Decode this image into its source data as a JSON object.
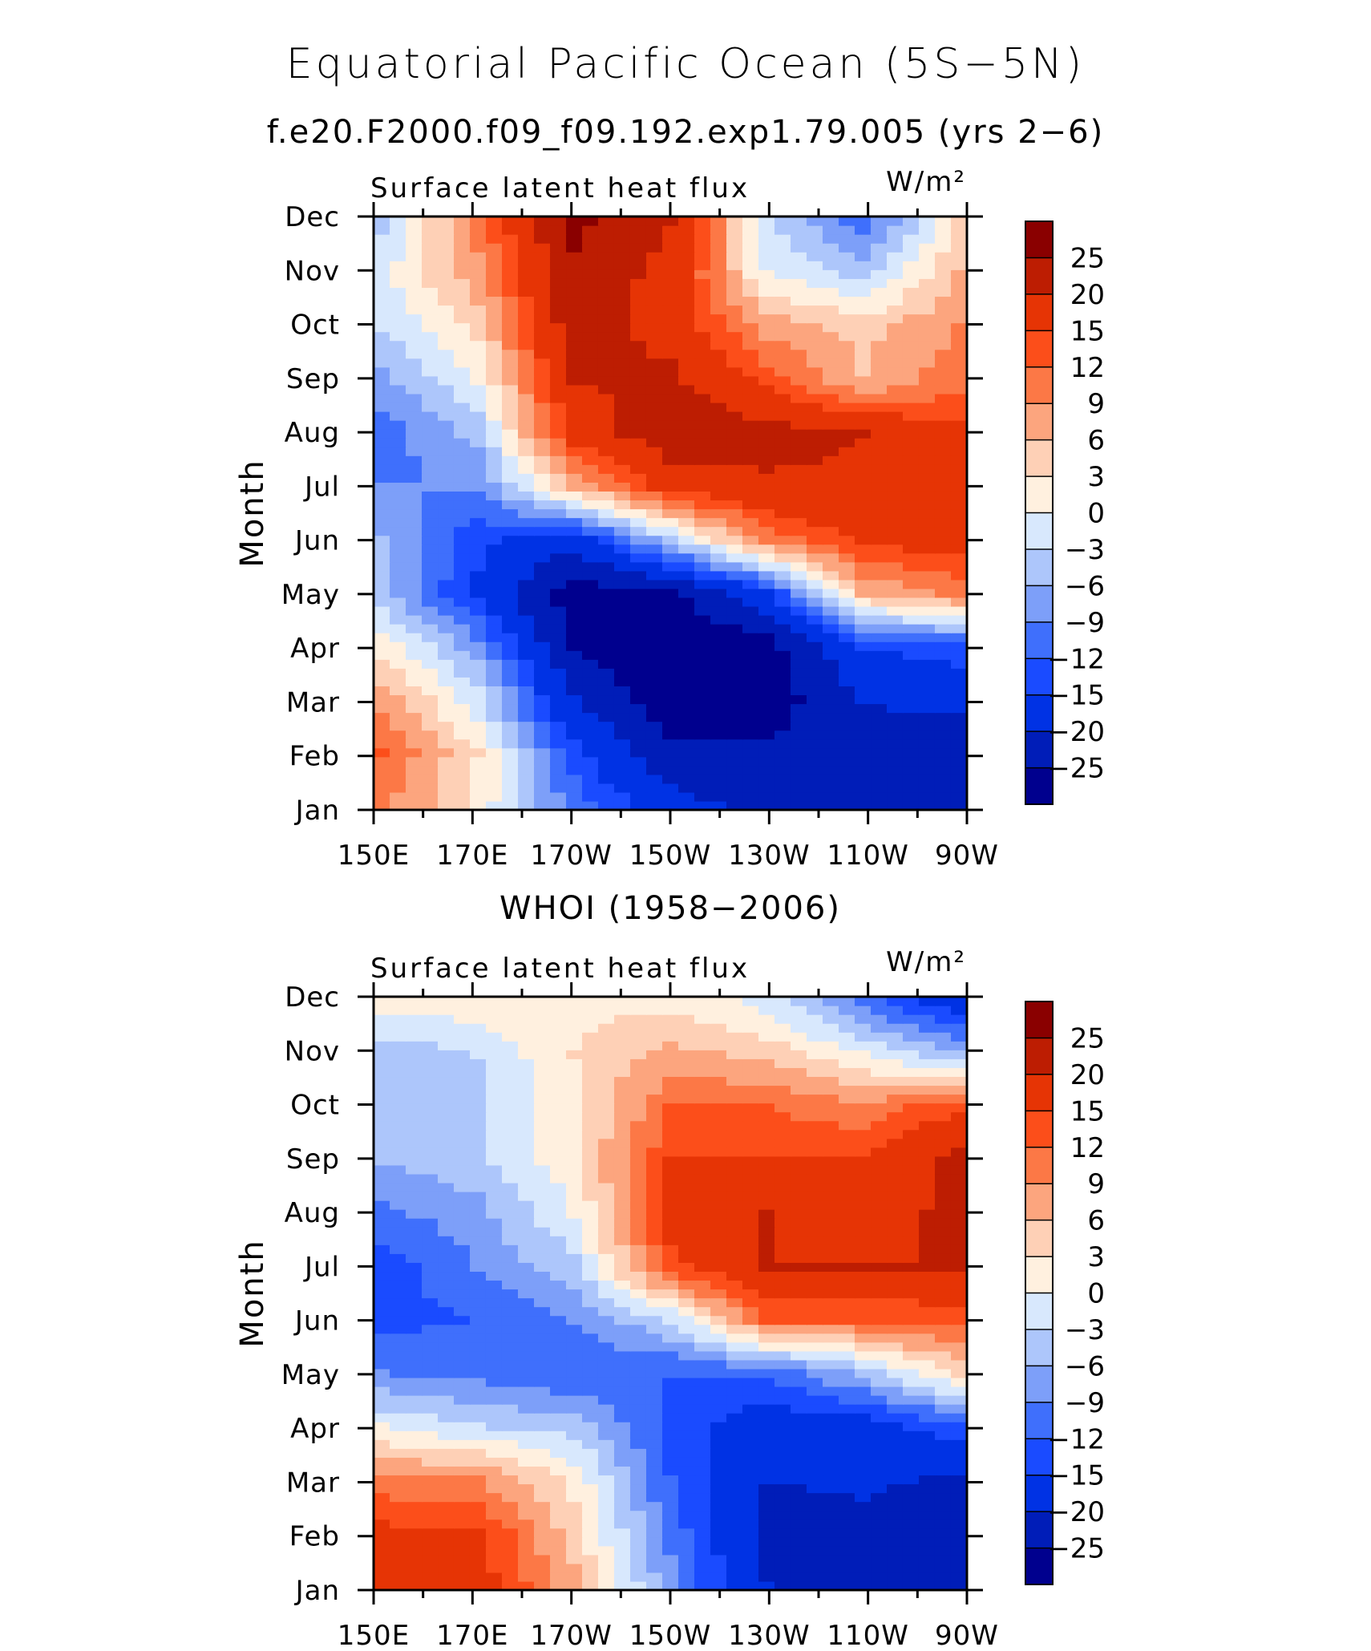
{
  "figure": {
    "title": "Equatorial Pacific Ocean (5S−5N)",
    "subtitle": "f.e20.F2000.f09_f09.192.exp1.79.005 (yrs 2−6)"
  },
  "colorbar": {
    "labels": [
      "25",
      "20",
      "15",
      "12",
      "9",
      "6",
      "3",
      "0",
      "−3",
      "−6",
      "−9",
      "−12",
      "−15",
      "−20",
      "−25"
    ],
    "levels": [
      -25,
      -20,
      -15,
      -12,
      -9,
      -6,
      -3,
      0,
      3,
      6,
      9,
      12,
      15,
      20,
      25
    ],
    "colors_low_to_high": [
      "#00008e",
      "#001db8",
      "#0032e4",
      "#1a4bff",
      "#3f6ffc",
      "#7d9ff9",
      "#adc6fb",
      "#d8e8fd",
      "#fff0df",
      "#fed0b6",
      "#fca57e",
      "#fc7846",
      "#fc4e1a",
      "#e63405",
      "#bd1d02",
      "#8a0000"
    ]
  },
  "chart_data": [
    {
      "type": "heatmap",
      "panel_title": "",
      "variable_label": "Surface latent heat flux",
      "units": "W/m²",
      "ylabel": "Month",
      "x": [
        "150E",
        "170E",
        "170W",
        "150W",
        "130W",
        "110W",
        "90W"
      ],
      "y": [
        "Jan",
        "Feb",
        "Mar",
        "Apr",
        "May",
        "Jun",
        "Jul",
        "Aug",
        "Sep",
        "Oct",
        "Nov",
        "Dec"
      ],
      "z": [
        [
          10,
          2,
          -10,
          -18,
          -22,
          -25,
          -25
        ],
        [
          12,
          3,
          -14,
          -24,
          -24,
          -21,
          -23
        ],
        [
          8,
          -2,
          -20,
          -28,
          -28,
          -20,
          -19
        ],
        [
          2,
          -8,
          -26,
          -30,
          -27,
          -15,
          -13
        ],
        [
          -5,
          -16,
          -28,
          -26,
          -16,
          6,
          10
        ],
        [
          -6,
          -14,
          -18,
          -4,
          10,
          16,
          17
        ],
        [
          -9,
          -9,
          6,
          17,
          19,
          19,
          16
        ],
        [
          -11,
          -5,
          17,
          23,
          22,
          20,
          16
        ],
        [
          -7,
          0,
          20,
          21,
          14,
          6,
          11
        ],
        [
          -3,
          4,
          23,
          18,
          8,
          5,
          9
        ],
        [
          -1,
          8,
          24,
          18,
          0,
          -4,
          6
        ],
        [
          -4,
          10,
          26,
          20,
          -2,
          -11,
          3
        ]
      ]
    },
    {
      "type": "heatmap",
      "panel_title": "WHOI (1958−2006)",
      "variable_label": "Surface latent heat flux",
      "units": "W/m²",
      "ylabel": "Month",
      "x": [
        "150E",
        "170E",
        "170W",
        "150W",
        "130W",
        "110W",
        "90W"
      ],
      "y": [
        "Jan",
        "Feb",
        "Mar",
        "Apr",
        "May",
        "Jun",
        "Jul",
        "Aug",
        "Sep",
        "Oct",
        "Nov",
        "Dec"
      ],
      "z": [
        [
          15,
          17,
          7,
          -8,
          -20,
          -22,
          -24
        ],
        [
          16,
          16,
          4,
          -10,
          -22,
          -22,
          -22
        ],
        [
          10,
          9,
          2,
          -12,
          -20,
          -19,
          -21
        ],
        [
          0,
          -3,
          -4,
          -13,
          -18,
          -17,
          -13
        ],
        [
          -9,
          -10,
          -12,
          -12,
          -12,
          -5,
          4
        ],
        [
          -13,
          -12,
          -9,
          -3,
          12,
          12,
          13
        ],
        [
          -14,
          -9,
          -4,
          14,
          20,
          20,
          20
        ],
        [
          -10,
          -7,
          0,
          16,
          20,
          18,
          21
        ],
        [
          -6,
          -4,
          2,
          15,
          15,
          15,
          22
        ],
        [
          -5,
          -4,
          2,
          12,
          12,
          10,
          14
        ],
        [
          -5,
          -3,
          3,
          7,
          5,
          0,
          -6
        ],
        [
          1,
          2,
          2,
          2,
          -1,
          -10,
          -18
        ]
      ]
    }
  ]
}
